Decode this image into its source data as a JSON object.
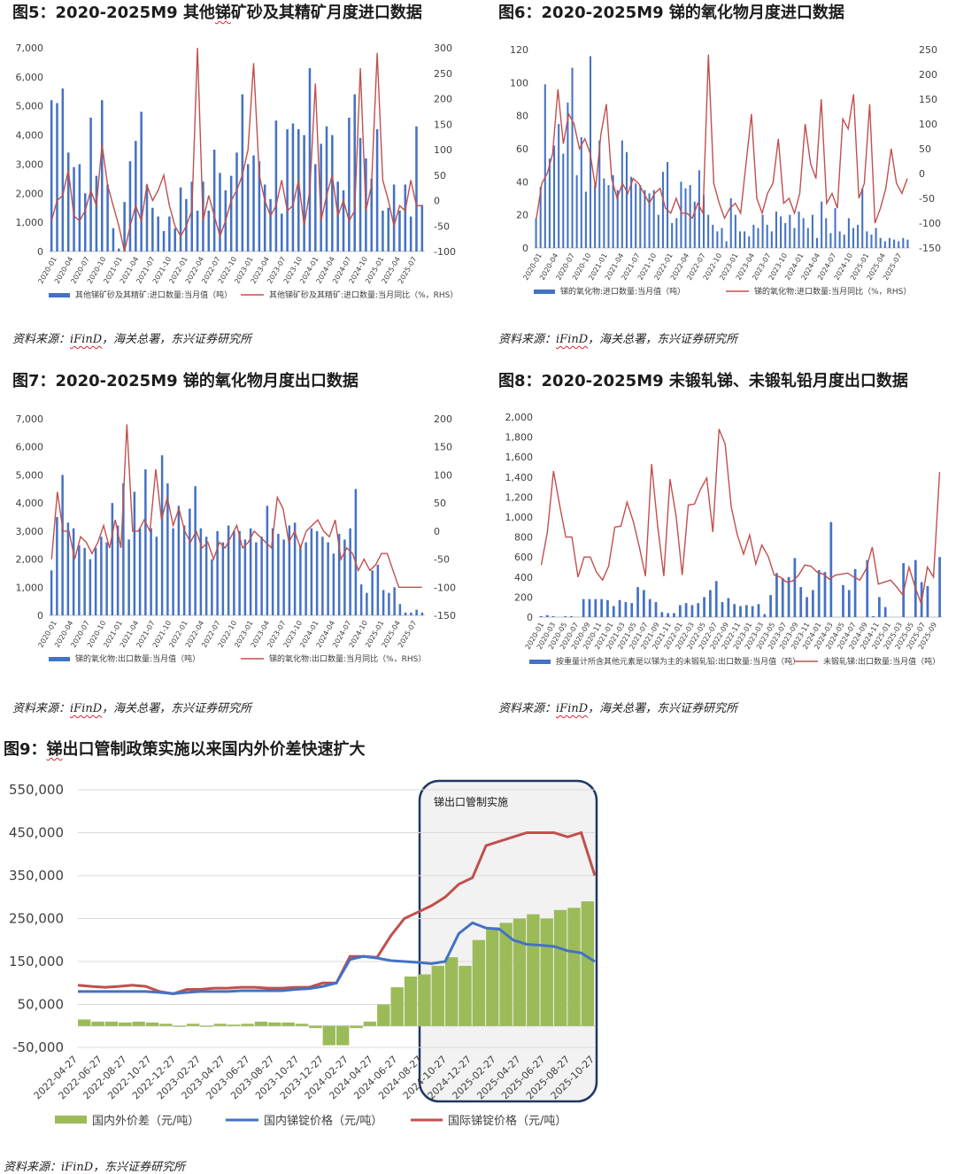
{
  "titles": {
    "fig5": {
      "prefix": "图5：2020-2025M9 其他",
      "u": "锑",
      "suffix": "矿砂及其精矿月度进口数据"
    },
    "fig6": "图6：2020-2025M9 锑的氧化物月度进口数据",
    "fig7": "图7：2020-2025M9 锑的氧化物月度出口数据",
    "fig8": "图8：2020-2025M9 未锻轧锑、未锻轧铅月度出口数据",
    "fig9": {
      "prefix": "图9：",
      "u": "锑",
      "suffix": "出口管制政策实施以来国内外价差快速扩大"
    }
  },
  "sources": {
    "s5": {
      "prefix": "资料来源：",
      "u": "iFinD",
      "suffix": "，海关总署，东兴证券研究所"
    },
    "s6": {
      "prefix": "资料来源：",
      "u": "iFinD",
      "suffix": "，海关总署，东兴证券研究所"
    },
    "s7": {
      "prefix": "资料来源：",
      "u": "iFinD",
      "suffix": "，海关总署，东兴证券研究所"
    },
    "s8": {
      "prefix": "资料来源：",
      "u": "iFinD",
      "suffix": "，海关总署，东兴证券研究所"
    },
    "s9": {
      "prefix": "资料来源：",
      "u": "iFinD",
      "suffix": "，东兴证券研究所"
    }
  },
  "colors": {
    "bar": "#4472c4",
    "line": "#c0504d",
    "green": "#9bbb59",
    "grid": "#d9d9d9"
  },
  "chart_data": [
    {
      "id": "fig5",
      "type": "bar+line",
      "ylim": [
        0,
        7000
      ],
      "yticks": [
        "0",
        "1,000",
        "2,000",
        "3,000",
        "4,000",
        "5,000",
        "6,000",
        "7,000"
      ],
      "y2lim": [
        -100,
        300
      ],
      "y2ticks": [
        "-100",
        "-50",
        "0",
        "50",
        "100",
        "150",
        "200",
        "250",
        "300"
      ],
      "xticks": [
        "2020-01",
        "2020-04",
        "2020-07",
        "2020-10",
        "2021-01",
        "2021-04",
        "2021-07",
        "2021-10",
        "2022-01",
        "2022-04",
        "2022-07",
        "2022-10",
        "2023-01",
        "2023-04",
        "2023-07",
        "2023-10",
        "2024-01",
        "2024-04",
        "2024-07",
        "2024-10",
        "2025-01",
        "2025-04",
        "2025-07"
      ],
      "series": [
        {
          "name": "其他锑矿砂及其精矿:进口数量:当月值（吨）",
          "axis": "left",
          "values": [
            5200,
            5100,
            5600,
            3400,
            2900,
            3000,
            2000,
            4600,
            2600,
            5200,
            2300,
            800,
            100,
            1700,
            3100,
            3800,
            4800,
            2300,
            1500,
            1200,
            700,
            1200,
            800,
            2200,
            1800,
            2400,
            1400,
            2400,
            1400,
            3500,
            2700,
            2100,
            2600,
            3400,
            5400,
            3000,
            3300,
            3100,
            2300,
            1800,
            4500,
            1300,
            4200,
            4400,
            4200,
            4000,
            6300,
            3000,
            3700,
            4300,
            4000,
            2400,
            2100,
            4600,
            5400,
            3900,
            3200,
            2500,
            4200,
            1400,
            1500,
            2300,
            1400,
            2300,
            1200,
            4300,
            1600
          ]
        },
        {
          "name": "其他锑矿砂及其精矿:进口数量:当月同比（%，RHS）",
          "axis": "right",
          "values": [
            -40,
            0,
            10,
            60,
            -30,
            -40,
            -20,
            20,
            -10,
            110,
            30,
            -10,
            -50,
            -100,
            -50,
            -10,
            -40,
            30,
            0,
            20,
            50,
            -10,
            -50,
            -70,
            -50,
            -20,
            300,
            -40,
            10,
            -30,
            -70,
            -40,
            0,
            20,
            50,
            100,
            270,
            50,
            0,
            -30,
            -10,
            40,
            -20,
            -10,
            40,
            -50,
            20,
            230,
            -40,
            10,
            50,
            -30,
            0,
            -40,
            -20,
            260,
            -20,
            30,
            290,
            40,
            0,
            -50,
            -10,
            -20,
            40,
            -10,
            -10
          ]
        }
      ],
      "legend": [
        "其他锑矿砂及其精矿:进口数量:当月值（吨）",
        "其他锑矿砂及其精矿:进口数量:当月同比（%，RHS）"
      ]
    },
    {
      "id": "fig6",
      "type": "bar+line",
      "ylim": [
        0,
        120
      ],
      "yticks": [
        "0",
        "20",
        "40",
        "60",
        "80",
        "100",
        "120"
      ],
      "y2lim": [
        -150,
        250
      ],
      "y2ticks": [
        "-150",
        "-100",
        "-50",
        "0",
        "50",
        "100",
        "150",
        "200",
        "250"
      ],
      "xticks": [
        "2020-01",
        "2020-04",
        "2020-07",
        "2020-10",
        "2021-01",
        "2021-04",
        "2021-07",
        "2021-10",
        "2022-01",
        "2022-04",
        "2022-07",
        "2022-10",
        "2023-01",
        "2023-04",
        "2023-07",
        "2023-10",
        "2024-01",
        "2024-04",
        "2024-07",
        "2024-10",
        "2025-01",
        "2025-04",
        "2025-07"
      ],
      "series": [
        {
          "name": "锑的氧化物:进口数量:当月值（吨）",
          "axis": "left",
          "values": [
            18,
            37,
            99,
            54,
            62,
            75,
            57,
            88,
            109,
            44,
            67,
            34,
            116,
            38,
            65,
            42,
            38,
            44,
            35,
            65,
            58,
            43,
            39,
            38,
            35,
            33,
            35,
            20,
            46,
            52,
            15,
            18,
            40,
            36,
            38,
            28,
            47,
            32,
            20,
            14,
            10,
            12,
            4,
            30,
            20,
            10,
            10,
            7,
            14,
            12,
            20,
            14,
            10,
            22,
            19,
            15,
            20,
            12,
            22,
            18,
            12,
            20,
            6,
            28,
            18,
            9,
            24,
            10,
            8,
            18,
            12,
            14,
            36,
            10,
            8,
            12,
            6,
            4,
            6,
            5,
            4,
            6,
            5
          ]
        },
        {
          "name": "锑的氧化物:进口数量:当月同比（%，RHS）",
          "axis": "right",
          "values": [
            -90,
            -20,
            0,
            40,
            170,
            60,
            120,
            100,
            50,
            70,
            40,
            -30,
            80,
            140,
            -10,
            -50,
            -20,
            -40,
            -10,
            -20,
            -40,
            -60,
            -40,
            -30,
            -70,
            -80,
            -50,
            -80,
            -80,
            -90,
            -60,
            -80,
            240,
            -20,
            -60,
            -90,
            -70,
            -60,
            -80,
            20,
            120,
            -50,
            -80,
            -40,
            -20,
            70,
            -60,
            -50,
            -80,
            -40,
            100,
            20,
            -10,
            150,
            -60,
            -40,
            -70,
            110,
            90,
            160,
            -50,
            -20,
            140,
            -100,
            -70,
            -30,
            50,
            -20,
            -40,
            -10
          ]
        }
      ],
      "legend": [
        "锑的氧化物:进口数量:当月值（吨）",
        "锑的氧化物:进口数量:当月同比（%，RHS）"
      ]
    },
    {
      "id": "fig7",
      "type": "bar+line",
      "ylim": [
        0,
        7000
      ],
      "yticks": [
        "0",
        "1,000",
        "2,000",
        "3,000",
        "4,000",
        "5,000",
        "6,000",
        "7,000"
      ],
      "y2lim": [
        -150,
        200
      ],
      "y2ticks": [
        "-150",
        "-100",
        "-50",
        "0",
        "50",
        "100",
        "150",
        "200"
      ],
      "xticks": [
        "2020-01",
        "2020-04",
        "2020-07",
        "2020-10",
        "2021-01",
        "2021-04",
        "2021-07",
        "2021-10",
        "2022-01",
        "2022-04",
        "2022-07",
        "2022-10",
        "2023-01",
        "2023-04",
        "2023-07",
        "2023-10",
        "2024-01",
        "2024-04",
        "2024-07",
        "2024-10",
        "2025-01",
        "2025-04",
        "2025-07"
      ],
      "series": [
        {
          "name": "锑的氧化物:出口数量:当月值（吨）",
          "axis": "left",
          "values": [
            1600,
            3500,
            5000,
            3300,
            3100,
            2500,
            2400,
            2000,
            2400,
            2800,
            2600,
            4000,
            3200,
            4700,
            2700,
            4400,
            3100,
            5200,
            3100,
            2800,
            5700,
            4700,
            3100,
            3900,
            3200,
            3800,
            4600,
            3100,
            2800,
            2000,
            3000,
            2600,
            3200,
            3000,
            3000,
            2700,
            3100,
            2600,
            2800,
            3900,
            3100,
            2900,
            2700,
            3200,
            3300,
            2500,
            2600,
            3100,
            3000,
            2800,
            2600,
            2200,
            2900,
            2700,
            3100,
            4500,
            1100,
            800,
            1600,
            1800,
            900,
            800,
            1000,
            400,
            100,
            100,
            200,
            100
          ]
        },
        {
          "name": "锑的氧化物:出口数量:当月同比（%，RHS）",
          "axis": "right",
          "values": [
            -50,
            70,
            0,
            0,
            -50,
            -10,
            -20,
            -40,
            -20,
            10,
            -30,
            20,
            -30,
            190,
            0,
            0,
            20,
            0,
            110,
            20,
            60,
            10,
            40,
            0,
            -20,
            0,
            -30,
            -20,
            -50,
            -20,
            -30,
            -10,
            10,
            -30,
            -20,
            0,
            -10,
            -20,
            -30,
            60,
            40,
            -20,
            0,
            -30,
            0,
            10,
            20,
            0,
            -10,
            20,
            -50,
            -30,
            -40,
            -70,
            -50,
            -70,
            -60,
            -40,
            -40,
            -70,
            -100,
            -100,
            -100,
            -100,
            -100
          ]
        }
      ],
      "legend": [
        "锑的氧化物:出口数量:当月值（吨）",
        "锑的氧化物:出口数量:当月同比（%，RHS）"
      ]
    },
    {
      "id": "fig8",
      "type": "bar+line",
      "ylim": [
        0,
        2000
      ],
      "yticks": [
        "0",
        "200",
        "400",
        "600",
        "800",
        "1,000",
        "1,200",
        "1,400",
        "1,600",
        "1,800",
        "2,000"
      ],
      "xticks": [
        "2020-01",
        "2020-03",
        "2020-05",
        "2020-07",
        "2020-09",
        "2020-11",
        "2021-01",
        "2021-03",
        "2021-05",
        "2021-07",
        "2021-09",
        "2021-11",
        "2022-01",
        "2022-03",
        "2022-05",
        "2022-07",
        "2022-09",
        "2022-11",
        "2023-01",
        "2023-03",
        "2023-05",
        "2023-07",
        "2023-09",
        "2023-11",
        "2024-01",
        "2024-03",
        "2024-05",
        "2024-07",
        "2024-09",
        "2024-11",
        "2025-01",
        "2025-03",
        "2025-05",
        "2025-07",
        "2025-09"
      ],
      "series": [
        {
          "name": "按重量计所含其他元素是以锑为主的未锻轧铅:出口数量:当月值（吨）",
          "axis": "left",
          "values": [
            10,
            20,
            10,
            0,
            10,
            10,
            0,
            180,
            180,
            180,
            180,
            170,
            110,
            170,
            150,
            140,
            300,
            270,
            180,
            150,
            50,
            40,
            40,
            120,
            140,
            120,
            140,
            200,
            270,
            360,
            150,
            190,
            130,
            110,
            120,
            110,
            130,
            30,
            220,
            440,
            390,
            400,
            590,
            300,
            200,
            270,
            470,
            450,
            950,
            0,
            320,
            270,
            480,
            0,
            570,
            10,
            200,
            100,
            0,
            0,
            540,
            0,
            570,
            350,
            310,
            0,
            600
          ]
        },
        {
          "name": "未锻轧锑:出口数量:当月值（吨）",
          "axis": "left",
          "values": [
            520,
            850,
            1460,
            1120,
            800,
            800,
            400,
            600,
            600,
            450,
            370,
            510,
            900,
            910,
            1150,
            960,
            700,
            410,
            1530,
            910,
            410,
            1380,
            1010,
            420,
            1120,
            1130,
            1280,
            1390,
            850,
            1880,
            1730,
            1100,
            820,
            630,
            820,
            530,
            720,
            610,
            420,
            400,
            350,
            360,
            420,
            520,
            510,
            450,
            430,
            380,
            420,
            430,
            440,
            400,
            370,
            480,
            700,
            330,
            350,
            370,
            300,
            220,
            500,
            300,
            130,
            500,
            400,
            1450
          ]
        }
      ],
      "legend": [
        "按重量计所含其他元素是以锑为主的未锻轧铅:出口数量:当月值（吨）",
        "未锻轧锑:出口数量:当月值（吨）"
      ]
    },
    {
      "id": "fig9",
      "type": "area+line",
      "ylim": [
        -50000,
        550000
      ],
      "yticks": [
        "-50,000",
        "50,000",
        "150,000",
        "250,000",
        "350,000",
        "450,000",
        "550,000"
      ],
      "xticks": [
        "2022-04-27",
        "2022-06-27",
        "2022-08-27",
        "2022-10-27",
        "2022-12-27",
        "2023-02-27",
        "2023-04-27",
        "2023-06-27",
        "2023-08-27",
        "2023-10-27",
        "2023-12-27",
        "2024-02-27",
        "2024-04-27",
        "2024-06-27",
        "2024-08-27",
        "2024-10-27",
        "2024-12-27",
        "2025-02-27",
        "2025-04-27",
        "2025-06-27",
        "2025-08-27",
        "2025-10-27"
      ],
      "annotation": "锑出口管制实施",
      "series": [
        {
          "name": "国内外价差（元/吨）",
          "kind": "bar",
          "values": [
            15000,
            10000,
            10000,
            8000,
            10000,
            8000,
            5000,
            0,
            5000,
            0,
            5000,
            3000,
            5000,
            10000,
            8000,
            8000,
            5000,
            -5000,
            -45000,
            -45000,
            -5000,
            10000,
            50000,
            90000,
            115000,
            120000,
            140000,
            160000,
            140000,
            200000,
            230000,
            240000,
            250000,
            260000,
            250000,
            270000,
            275000,
            290000
          ]
        },
        {
          "name": "国内锑锭价格（元/吨）",
          "kind": "line",
          "values": [
            80000,
            80000,
            80000,
            80000,
            80000,
            80000,
            78000,
            75000,
            78000,
            80000,
            80000,
            80000,
            82000,
            82000,
            82000,
            82000,
            85000,
            87000,
            92000,
            100000,
            155000,
            162000,
            158000,
            152000,
            150000,
            148000,
            145000,
            150000,
            215000,
            240000,
            228000,
            225000,
            200000,
            190000,
            188000,
            185000,
            175000,
            170000,
            150000
          ]
        },
        {
          "name": "国际锑锭价格（元/吨）",
          "kind": "line",
          "values": [
            95000,
            92000,
            90000,
            92000,
            95000,
            92000,
            80000,
            75000,
            85000,
            85000,
            88000,
            88000,
            90000,
            90000,
            88000,
            88000,
            90000,
            90000,
            100000,
            100000,
            162000,
            162000,
            160000,
            210000,
            250000,
            265000,
            280000,
            300000,
            330000,
            345000,
            420000,
            430000,
            440000,
            450000,
            450000,
            450000,
            440000,
            450000,
            350000
          ]
        }
      ],
      "legend": [
        "国内外价差（元/吨）",
        "国内锑锭价格（元/吨）",
        "国际锑锭价格（元/吨）"
      ]
    }
  ]
}
